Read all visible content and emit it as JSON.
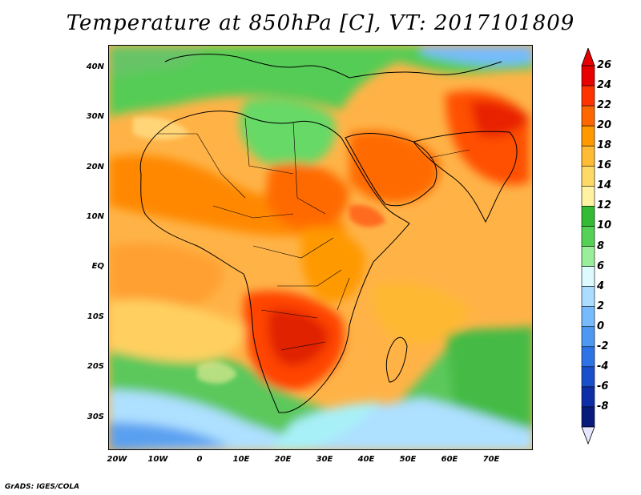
{
  "title": "Temperature at 850hPa [C], VT: 2017101809",
  "footer": "GrADS: IGES/COLA",
  "map": {
    "lon_ticks": [
      "20W",
      "10W",
      "0",
      "10E",
      "20E",
      "30E",
      "40E",
      "50E",
      "60E",
      "70E"
    ],
    "lat_ticks": [
      "40N",
      "30N",
      "20N",
      "10N",
      "EQ",
      "10S",
      "20S",
      "30S"
    ],
    "lon_range": [
      -22,
      80
    ],
    "lat_range": [
      -37,
      45
    ]
  },
  "colorbar": {
    "labels": [
      "26",
      "24",
      "22",
      "20",
      "18",
      "16",
      "14",
      "12",
      "10",
      "8",
      "6",
      "4",
      "2",
      "0",
      "-2",
      "-4",
      "-6",
      "-8"
    ],
    "colors": [
      "#e60000",
      "#ff3300",
      "#ff6600",
      "#ff9900",
      "#ffbb33",
      "#ffd966",
      "#fff2a0",
      "#33bb33",
      "#55d155",
      "#99ee99",
      "#ddfaff",
      "#aaddff",
      "#77bbff",
      "#4d99f2",
      "#2e73e6",
      "#1a4fcc",
      "#0d2ea6",
      "#081a7a"
    ]
  }
}
